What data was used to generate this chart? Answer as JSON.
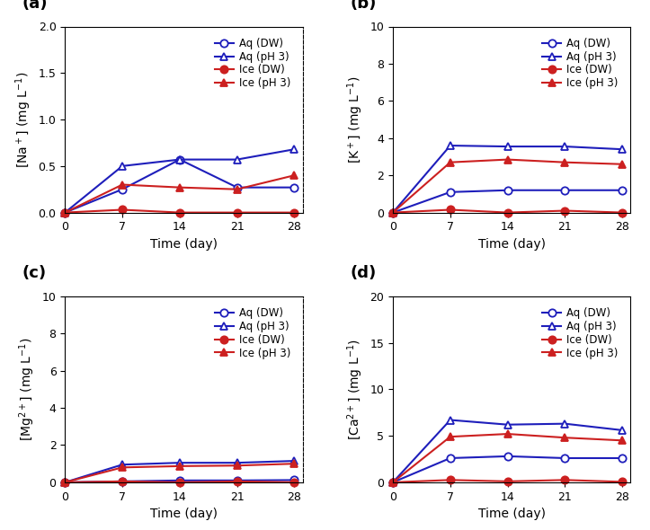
{
  "time": [
    0,
    7,
    14,
    21,
    28
  ],
  "subplots": [
    {
      "label": "(a)",
      "ylabel": "[Na$^+$] (mg L$^{-1}$)",
      "ylim": [
        0,
        2.0
      ],
      "yticks": [
        0.0,
        0.5,
        1.0,
        1.5,
        2.0
      ],
      "series": [
        {
          "label": "Aq (DW)",
          "color": "#1e1ebb",
          "marker": "o",
          "filled": false,
          "values": [
            0.0,
            0.25,
            0.57,
            0.27,
            0.27
          ]
        },
        {
          "label": "Aq (pH 3)",
          "color": "#1e1ebb",
          "marker": "^",
          "filled": false,
          "values": [
            0.0,
            0.5,
            0.57,
            0.57,
            0.68
          ]
        },
        {
          "label": "Ice (DW)",
          "color": "#cc2020",
          "marker": "o",
          "filled": true,
          "values": [
            0.0,
            0.03,
            0.0,
            0.0,
            0.0
          ]
        },
        {
          "label": "Ice (pH 3)",
          "color": "#cc2020",
          "marker": "^",
          "filled": true,
          "values": [
            0.0,
            0.3,
            0.27,
            0.25,
            0.4
          ]
        }
      ]
    },
    {
      "label": "(b)",
      "ylabel": "[K$^+$] (mg L$^{-1}$)",
      "ylim": [
        0,
        10
      ],
      "yticks": [
        0,
        2,
        4,
        6,
        8,
        10
      ],
      "series": [
        {
          "label": "Aq (DW)",
          "color": "#1e1ebb",
          "marker": "o",
          "filled": false,
          "values": [
            0.0,
            1.1,
            1.2,
            1.2,
            1.2
          ]
        },
        {
          "label": "Aq (pH 3)",
          "color": "#1e1ebb",
          "marker": "^",
          "filled": false,
          "values": [
            0.0,
            3.6,
            3.55,
            3.55,
            3.4
          ]
        },
        {
          "label": "Ice (DW)",
          "color": "#cc2020",
          "marker": "o",
          "filled": true,
          "values": [
            0.0,
            0.15,
            0.0,
            0.1,
            0.0
          ]
        },
        {
          "label": "Ice (pH 3)",
          "color": "#cc2020",
          "marker": "^",
          "filled": true,
          "values": [
            0.0,
            2.7,
            2.85,
            2.7,
            2.6
          ]
        }
      ]
    },
    {
      "label": "(c)",
      "ylabel": "[Mg$^{2+}$] (mg L$^{-1}$)",
      "ylim": [
        0,
        10
      ],
      "yticks": [
        0,
        2,
        4,
        6,
        8,
        10
      ],
      "series": [
        {
          "label": "Aq (DW)",
          "color": "#1e1ebb",
          "marker": "o",
          "filled": false,
          "values": [
            0.0,
            0.05,
            0.1,
            0.1,
            0.12
          ]
        },
        {
          "label": "Aq (pH 3)",
          "color": "#1e1ebb",
          "marker": "^",
          "filled": false,
          "values": [
            0.0,
            0.95,
            1.05,
            1.05,
            1.15
          ]
        },
        {
          "label": "Ice (DW)",
          "color": "#cc2020",
          "marker": "o",
          "filled": true,
          "values": [
            0.0,
            0.05,
            0.0,
            0.05,
            0.0
          ]
        },
        {
          "label": "Ice (pH 3)",
          "color": "#cc2020",
          "marker": "^",
          "filled": true,
          "values": [
            0.0,
            0.8,
            0.87,
            0.9,
            1.0
          ]
        }
      ]
    },
    {
      "label": "(d)",
      "ylabel": "[Ca$^{2+}$] (mg L$^{-1}$)",
      "ylim": [
        0,
        20
      ],
      "yticks": [
        0,
        5,
        10,
        15,
        20
      ],
      "series": [
        {
          "label": "Aq (DW)",
          "color": "#1e1ebb",
          "marker": "o",
          "filled": false,
          "values": [
            0.0,
            2.6,
            2.8,
            2.6,
            2.6
          ]
        },
        {
          "label": "Aq (pH 3)",
          "color": "#1e1ebb",
          "marker": "^",
          "filled": false,
          "values": [
            0.0,
            6.7,
            6.2,
            6.3,
            5.6
          ]
        },
        {
          "label": "Ice (DW)",
          "color": "#cc2020",
          "marker": "o",
          "filled": true,
          "values": [
            0.0,
            0.25,
            0.1,
            0.25,
            0.05
          ]
        },
        {
          "label": "Ice (pH 3)",
          "color": "#cc2020",
          "marker": "^",
          "filled": true,
          "values": [
            0.0,
            4.9,
            5.2,
            4.8,
            4.5
          ]
        }
      ]
    }
  ],
  "xlabel": "Time (day)",
  "xticks": [
    0,
    7,
    14,
    21,
    28
  ],
  "marker_size": 6,
  "line_width": 1.5,
  "legend_fontsize": 8.5,
  "tick_fontsize": 9,
  "label_fontsize": 10,
  "panel_label_fontsize": 13
}
